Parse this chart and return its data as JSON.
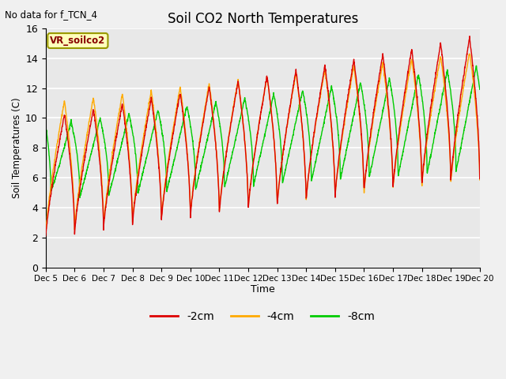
{
  "title": "Soil CO2 North Temperatures",
  "top_left_text": "No data for f_TCN_4",
  "xlabel": "Time",
  "ylabel": "Soil Temperatures (C)",
  "ylim": [
    0,
    16
  ],
  "legend_box_label": "VR_soilco2",
  "legend_entries": [
    "-2cm",
    "-4cm",
    "-8cm"
  ],
  "line_colors": [
    "#dd0000",
    "#ffaa00",
    "#00cc00"
  ],
  "background_color": "#e8e8e8",
  "yticks": [
    0,
    2,
    4,
    6,
    8,
    10,
    12,
    14,
    16
  ],
  "x_tick_labels": [
    "Dec 5",
    "Dec 6",
    "Dec 7",
    "Dec 8",
    "Dec 9",
    "Dec 10",
    "Dec 11",
    "Dec 12",
    "Dec 13",
    "Dec 14",
    "Dec 15",
    "Dec 16",
    "Dec 17",
    "Dec 18",
    "Dec 19",
    "Dec 20"
  ],
  "num_days": 15,
  "figsize": [
    6.4,
    4.8
  ],
  "dpi": 100
}
